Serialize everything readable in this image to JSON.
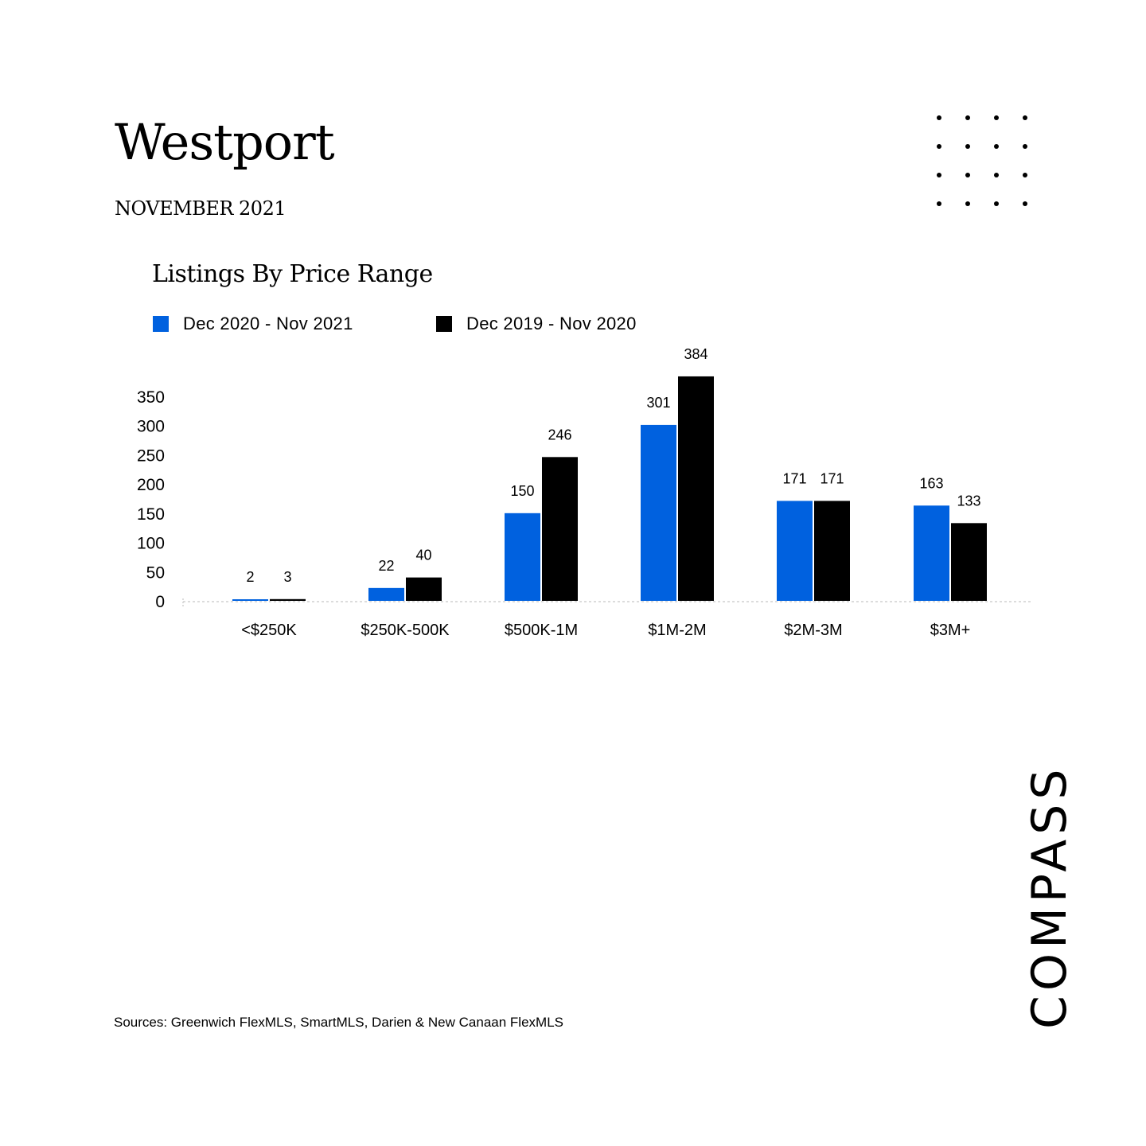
{
  "header": {
    "title": "Westport",
    "subtitle": "NOVEMBER 2021"
  },
  "chart_data": {
    "type": "bar",
    "title": "Listings By Price Range",
    "xlabel": "",
    "ylabel": "",
    "categories": [
      "<$250K",
      "$250K-500K",
      "$500K-1M",
      "$1M-2M",
      "$2M-3M",
      "$3M+"
    ],
    "series": [
      {
        "name": "Dec 2020 - Nov 2021",
        "color": "#0061df",
        "values": [
          2,
          22,
          150,
          301,
          171,
          163
        ]
      },
      {
        "name": "Dec 2019 - Nov 2020",
        "color": "#000000",
        "values": [
          3,
          40,
          246,
          384,
          171,
          133
        ]
      }
    ],
    "yticks": [
      0,
      50,
      100,
      150,
      200,
      250,
      300,
      350
    ],
    "ylim": [
      0,
      384
    ],
    "grid": false,
    "legend": "top-left",
    "data_labels": true
  },
  "footer": {
    "sources": "Sources: Greenwich FlexMLS, SmartMLS, Darien & New Canaan FlexMLS"
  },
  "brand": {
    "logo_text": "COMPASS",
    "decoration": "dot-grid"
  }
}
